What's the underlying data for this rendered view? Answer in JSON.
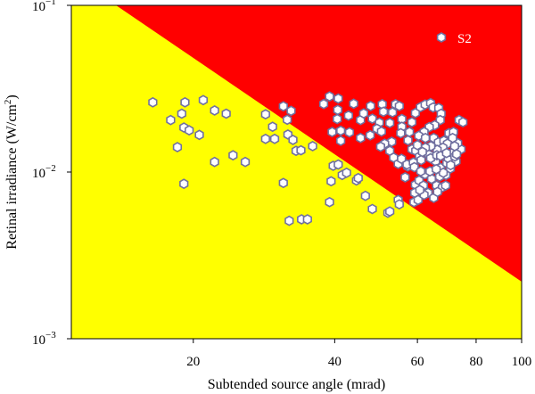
{
  "chart_data": {
    "type": "scatter",
    "xlabel": "Subtended source angle (mrad)",
    "ylabel_main": "Retinal irradiance (W/cm",
    "ylabel_sup": "2",
    "ylabel_end": ")",
    "xscale": "log",
    "yscale": "log",
    "xlim": [
      11,
      100
    ],
    "ylim": [
      0.001,
      0.1
    ],
    "xticks": [
      {
        "value": 20,
        "label": "20"
      },
      {
        "value": 40,
        "label": "40"
      },
      {
        "value": 60,
        "label": "60"
      },
      {
        "value": 80,
        "label": "80"
      },
      {
        "value": 100,
        "label": "100"
      }
    ],
    "yticks": [
      {
        "value": 0.1,
        "base": "10",
        "exp": "−1"
      },
      {
        "value": 0.01,
        "base": "10",
        "exp": "−2"
      },
      {
        "value": 0.001,
        "base": "10",
        "exp": "−3"
      }
    ],
    "grid": false,
    "legend_position": "top-right",
    "regions": {
      "boundary_line": [
        [
          13.7,
          0.1
        ],
        [
          100,
          0.0022
        ]
      ],
      "above_color": "#ff0000",
      "below_color": "#ffff00"
    },
    "series": [
      {
        "name": "S2",
        "marker": "hexagon",
        "fill": "#ffffff",
        "stroke": "#7070a0",
        "points": [
          [
            16.4,
            0.0262
          ],
          [
            17.9,
            0.0205
          ],
          [
            18.9,
            0.0224
          ],
          [
            19.2,
            0.0262
          ],
          [
            19.1,
            0.0185
          ],
          [
            19.6,
            0.0178
          ],
          [
            20.6,
            0.0167
          ],
          [
            18.5,
            0.0141
          ],
          [
            19.1,
            0.0085
          ],
          [
            21,
            0.027
          ],
          [
            22.2,
            0.0234
          ],
          [
            23.5,
            0.0224
          ],
          [
            22.2,
            0.0115
          ],
          [
            24.3,
            0.0126
          ],
          [
            25.8,
            0.0115
          ],
          [
            28.5,
            0.0222
          ],
          [
            28.5,
            0.0158
          ],
          [
            29.8,
            0.0158
          ],
          [
            29.5,
            0.0187
          ],
          [
            31.1,
            0.0248
          ],
          [
            31.7,
            0.0206
          ],
          [
            32.3,
            0.0233
          ],
          [
            31.8,
            0.0168
          ],
          [
            32.6,
            0.0156
          ],
          [
            33.1,
            0.0134
          ],
          [
            33.9,
            0.0135
          ],
          [
            31.1,
            0.0086
          ],
          [
            32.0,
            0.0051
          ],
          [
            34.0,
            0.0052
          ],
          [
            35.0,
            0.0052
          ],
          [
            35.9,
            0.0143
          ],
          [
            37.9,
            0.0256
          ],
          [
            39.0,
            0.0284
          ],
          [
            40.6,
            0.0236
          ],
          [
            40.5,
            0.0208
          ],
          [
            40.7,
            0.0276
          ],
          [
            39.5,
            0.0174
          ],
          [
            41.2,
            0.0177
          ],
          [
            41.2,
            0.0154
          ],
          [
            42.8,
            0.0218
          ],
          [
            43.9,
            0.0257
          ],
          [
            43.0,
            0.0173
          ],
          [
            45.4,
            0.0205
          ],
          [
            46.1,
            0.0225
          ],
          [
            45.4,
            0.016
          ],
          [
            47.6,
            0.0166
          ],
          [
            48.1,
            0.0209
          ],
          [
            47.7,
            0.0249
          ],
          [
            50.5,
            0.0255
          ],
          [
            50.8,
            0.023
          ],
          [
            49.8,
            0.0198
          ],
          [
            49.2,
            0.0182
          ],
          [
            50.3,
            0.0175
          ],
          [
            52.4,
            0.0197
          ],
          [
            53.1,
            0.0228
          ],
          [
            53.9,
            0.0255
          ],
          [
            54.9,
            0.0249
          ],
          [
            55.6,
            0.0208
          ],
          [
            55.6,
            0.0187
          ],
          [
            52.9,
            0.0152
          ],
          [
            51.1,
            0.0148
          ],
          [
            50.1,
            0.0142
          ],
          [
            39.7,
            0.0109
          ],
          [
            40.7,
            0.0111
          ],
          [
            39.3,
            0.0088
          ],
          [
            41.5,
            0.0096
          ],
          [
            44.5,
            0.0089
          ],
          [
            44.9,
            0.0092
          ],
          [
            42.4,
            0.0099
          ],
          [
            39.0,
            0.0066
          ],
          [
            46.5,
            0.0072
          ],
          [
            48.1,
            0.006
          ],
          [
            51.9,
            0.0057
          ],
          [
            52.4,
            0.0058
          ],
          [
            54.6,
            0.0068
          ],
          [
            54.9,
            0.0064
          ],
          [
            52.4,
            0.0134
          ],
          [
            53.4,
            0.0122
          ],
          [
            54.6,
            0.0112
          ],
          [
            55.5,
            0.012
          ],
          [
            57.2,
            0.0108
          ],
          [
            57.3,
            0.0155
          ],
          [
            55.3,
            0.0171
          ],
          [
            57.7,
            0.0174
          ],
          [
            58.4,
            0.0137
          ],
          [
            59.5,
            0.0134
          ],
          [
            58.4,
            0.0199
          ],
          [
            59.4,
            0.0226
          ],
          [
            60.9,
            0.0245
          ],
          [
            62.3,
            0.0254
          ],
          [
            64.0,
            0.0259
          ],
          [
            64.8,
            0.0244
          ],
          [
            66.6,
            0.0242
          ],
          [
            67.4,
            0.0224
          ],
          [
            67.1,
            0.0205
          ],
          [
            65.3,
            0.0191
          ],
          [
            63.6,
            0.0186
          ],
          [
            62.0,
            0.0174
          ],
          [
            60.4,
            0.0165
          ],
          [
            62.4,
            0.016
          ],
          [
            65.0,
            0.016
          ],
          [
            66.5,
            0.0151
          ],
          [
            68.3,
            0.0154
          ],
          [
            70.0,
            0.0171
          ],
          [
            71.6,
            0.0174
          ],
          [
            73.6,
            0.0205
          ],
          [
            75.0,
            0.0199
          ],
          [
            56.5,
            0.0093
          ],
          [
            57.0,
            0.0111
          ],
          [
            58.8,
            0.0114
          ],
          [
            59.1,
            0.0107
          ],
          [
            60.6,
            0.0124
          ],
          [
            61.1,
            0.0118
          ],
          [
            63.5,
            0.0127
          ],
          [
            65.6,
            0.0116
          ],
          [
            67.2,
            0.0106
          ],
          [
            69.3,
            0.0113
          ],
          [
            69.8,
            0.0121
          ],
          [
            71.1,
            0.013
          ],
          [
            72.5,
            0.0116
          ],
          [
            74.3,
            0.0137
          ],
          [
            73.1,
            0.0149
          ],
          [
            71.3,
            0.016
          ],
          [
            69.5,
            0.0148
          ],
          [
            68.0,
            0.014
          ],
          [
            66.1,
            0.0136
          ],
          [
            64.1,
            0.0143
          ],
          [
            62.4,
            0.014
          ],
          [
            61.5,
            0.0132
          ],
          [
            60.0,
            0.0145
          ],
          [
            64.0,
            0.0121
          ],
          [
            66.0,
            0.0126
          ],
          [
            70.5,
            0.0105
          ],
          [
            72.0,
            0.0143
          ],
          [
            59.4,
            0.0084
          ],
          [
            60.5,
            0.0089
          ],
          [
            61.8,
            0.0083
          ],
          [
            62.3,
            0.0097
          ],
          [
            63.2,
            0.0075
          ],
          [
            64.3,
            0.0091
          ],
          [
            65.9,
            0.0083
          ],
          [
            67.8,
            0.0081
          ],
          [
            69.0,
            0.0096
          ],
          [
            68.9,
            0.0083
          ],
          [
            59.2,
            0.0075
          ],
          [
            59.0,
            0.0066
          ],
          [
            60.2,
            0.0068
          ],
          [
            62.0,
            0.0073
          ],
          [
            65.0,
            0.007
          ],
          [
            66.2,
            0.0076
          ],
          [
            60.7,
            0.0078
          ],
          [
            63.8,
            0.0101
          ],
          [
            66.9,
            0.0094
          ],
          [
            70.6,
            0.011
          ],
          [
            68.1,
            0.0099
          ],
          [
            65.8,
            0.0104
          ],
          [
            61.0,
            0.0101
          ],
          [
            67.2,
            0.0125
          ],
          [
            69.2,
            0.013
          ],
          [
            72.1,
            0.0124
          ],
          [
            72.7,
            0.0128
          ]
        ]
      }
    ]
  }
}
